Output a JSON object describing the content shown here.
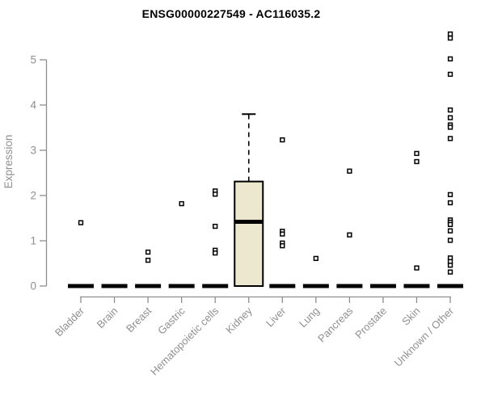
{
  "page": {
    "background_color": "#ffffff"
  },
  "chart_data": {
    "type": "boxplot",
    "title": "ENSG00000227549 - AC116035.2",
    "xlabel": "",
    "ylabel": "Expression",
    "ylim": [
      0,
      5.7
    ],
    "yticks": [
      0,
      1,
      2,
      3,
      4,
      5
    ],
    "grid": false,
    "legend": "none",
    "categories": [
      "Bladder",
      "Brain",
      "Breast",
      "Gastric",
      "Hematopoietic cells",
      "Kidney",
      "Liver",
      "Lung",
      "Pancreas",
      "Prostate",
      "Skin",
      "Unknown / Other"
    ],
    "boxes": [
      {
        "category": "Bladder",
        "q1": 0,
        "median": 0,
        "q3": 0,
        "whisker_low": 0,
        "whisker_high": 0,
        "outliers": [
          1.4
        ]
      },
      {
        "category": "Brain",
        "q1": 0,
        "median": 0,
        "q3": 0,
        "whisker_low": 0,
        "whisker_high": 0,
        "outliers": []
      },
      {
        "category": "Breast",
        "q1": 0,
        "median": 0,
        "q3": 0,
        "whisker_low": 0,
        "whisker_high": 0,
        "outliers": [
          0.75,
          0.57
        ]
      },
      {
        "category": "Gastric",
        "q1": 0,
        "median": 0,
        "q3": 0,
        "whisker_low": 0,
        "whisker_high": 0,
        "outliers": [
          1.82
        ]
      },
      {
        "category": "Hematopoietic cells",
        "q1": 0,
        "median": 0,
        "q3": 0,
        "whisker_low": 0,
        "whisker_high": 0,
        "outliers": [
          2.1,
          2.03,
          1.32,
          0.79,
          0.73
        ]
      },
      {
        "category": "Kidney",
        "q1": 0,
        "median": 1.42,
        "q3": 2.31,
        "whisker_low": 0,
        "whisker_high": 3.8,
        "outliers": []
      },
      {
        "category": "Liver",
        "q1": 0,
        "median": 0,
        "q3": 0,
        "whisker_low": 0,
        "whisker_high": 0,
        "outliers": [
          3.23,
          1.21,
          1.15,
          0.95,
          0.89
        ]
      },
      {
        "category": "Lung",
        "q1": 0,
        "median": 0,
        "q3": 0,
        "whisker_low": 0,
        "whisker_high": 0,
        "outliers": [
          0.61
        ]
      },
      {
        "category": "Pancreas",
        "q1": 0,
        "median": 0,
        "q3": 0,
        "whisker_low": 0,
        "whisker_high": 0,
        "outliers": [
          2.54,
          1.13
        ]
      },
      {
        "category": "Prostate",
        "q1": 0,
        "median": 0,
        "q3": 0,
        "whisker_low": 0,
        "whisker_high": 0,
        "outliers": []
      },
      {
        "category": "Skin",
        "q1": 0,
        "median": 0,
        "q3": 0,
        "whisker_low": 0,
        "whisker_high": 0,
        "outliers": [
          2.93,
          2.75,
          0.4
        ]
      },
      {
        "category": "Unknown / Other",
        "q1": 0,
        "median": 0,
        "q3": 0,
        "whisker_low": 0,
        "whisker_high": 0,
        "outliers": [
          5.57,
          5.48,
          5.02,
          4.68,
          3.89,
          3.72,
          3.56,
          3.51,
          3.26,
          2.02,
          1.84,
          1.46,
          1.41,
          1.36,
          1.22,
          1.01,
          0.62,
          0.54,
          0.46,
          0.31
        ]
      }
    ],
    "colors": {
      "box_fill": "#ece8cf",
      "box_border": "#000000",
      "median": "#000000",
      "axis": "#8f8f8f",
      "tick_label": "#8f8f8f",
      "title_text": "#000000",
      "outlier_fill": "#ffffff",
      "outlier_border": "#000000"
    }
  }
}
